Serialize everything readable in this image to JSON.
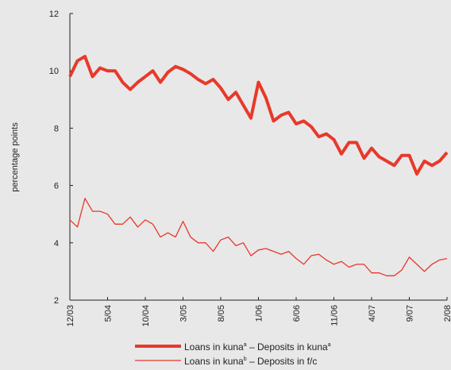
{
  "chart_data": {
    "type": "line",
    "y_label": "percentage points",
    "categories": [
      "12/03",
      null,
      null,
      null,
      null,
      "5/04",
      null,
      null,
      null,
      null,
      "10/04",
      null,
      null,
      null,
      null,
      "3/05",
      null,
      null,
      null,
      null,
      "8/05",
      null,
      null,
      null,
      null,
      "1/06",
      null,
      null,
      null,
      null,
      "6/06",
      null,
      null,
      null,
      null,
      "11/06",
      null,
      null,
      null,
      null,
      "4/07",
      null,
      null,
      null,
      null,
      "9/07",
      null,
      null,
      null,
      null,
      "2/08"
    ],
    "series": [
      {
        "name": [
          "Loans in kuna",
          "a",
          " – Deposits in kuna",
          "a"
        ],
        "color": "#e8392a",
        "width": 4,
        "values": [
          9.8,
          10.35,
          10.5,
          9.8,
          10.1,
          10.0,
          10.0,
          9.6,
          9.35,
          9.6,
          9.8,
          10.0,
          9.6,
          9.95,
          10.15,
          10.05,
          9.9,
          9.7,
          9.55,
          9.7,
          9.4,
          9.0,
          9.25,
          8.8,
          8.35,
          9.6,
          9.05,
          8.25,
          8.45,
          8.55,
          8.15,
          8.25,
          8.05,
          7.7,
          7.8,
          7.6,
          7.1,
          7.5,
          7.5,
          6.95,
          7.3,
          7.0,
          6.85,
          6.7,
          7.05,
          7.05,
          6.4,
          6.85,
          6.7,
          6.85,
          7.15
        ]
      },
      {
        "name": [
          "Loans in kuna",
          "b",
          " – Deposits in f/c"
        ],
        "color": "#e8392a",
        "width": 1.3,
        "values": [
          4.8,
          4.55,
          5.55,
          5.1,
          5.1,
          5.0,
          4.65,
          4.65,
          4.9,
          4.55,
          4.8,
          4.65,
          4.2,
          4.35,
          4.2,
          4.75,
          4.2,
          4.0,
          4.0,
          3.7,
          4.1,
          4.2,
          3.9,
          4.0,
          3.55,
          3.75,
          3.8,
          3.7,
          3.6,
          3.7,
          3.45,
          3.25,
          3.55,
          3.6,
          3.4,
          3.25,
          3.35,
          3.15,
          3.25,
          3.25,
          2.95,
          2.95,
          2.85,
          2.85,
          3.05,
          3.5,
          3.25,
          3.0,
          3.25,
          3.4,
          3.45
        ]
      }
    ],
    "ylim": [
      2,
      12
    ],
    "yticks": [
      2,
      4,
      6,
      8,
      10,
      12
    ]
  }
}
